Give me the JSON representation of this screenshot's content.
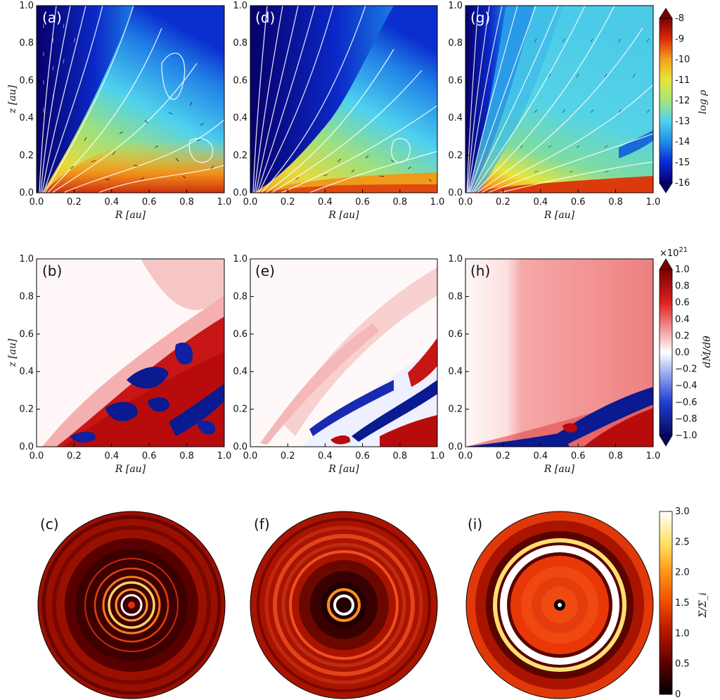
{
  "figure": {
    "panels_row1": [
      "(a)",
      "(d)",
      "(g)"
    ],
    "panels_row2": [
      "(b)",
      "(e)",
      "(h)"
    ],
    "panels_row3": [
      "(c)",
      "(f)",
      "(i)"
    ]
  },
  "chart_data": [
    {
      "type": "heatmap",
      "row": "density",
      "panels": [
        "(a)",
        "(d)",
        "(g)"
      ],
      "xlabel": "R [au]",
      "ylabel": "z [au]",
      "xlim": [
        0.0,
        1.0
      ],
      "ylim": [
        0.0,
        1.0
      ],
      "xticks": [
        "0.0",
        "0.2",
        "0.4",
        "0.6",
        "0.8",
        "1.0"
      ],
      "yticks": [
        "0.0",
        "0.2",
        "0.4",
        "0.6",
        "0.8",
        "1.0"
      ],
      "colorbar": {
        "label": "log ρ",
        "range": [
          -16,
          -8
        ],
        "ticks": [
          "-8",
          "-9",
          "-10",
          "-11",
          "-12",
          "-13",
          "-14",
          "-15",
          "-16"
        ],
        "colors": [
          "#08006e",
          "#0a28d4",
          "#1f8de8",
          "#4fd2ef",
          "#a3e67a",
          "#e6e53a",
          "#f5a21c",
          "#dc2a0c",
          "#7a0000"
        ]
      },
      "overlays": [
        "white field lines",
        "black velocity vectors"
      ]
    },
    {
      "type": "heatmap",
      "row": "mass flux",
      "panels": [
        "(b)",
        "(e)",
        "(h)"
      ],
      "xlabel": "R [au]",
      "ylabel": "z [au]",
      "xlim": [
        0.0,
        1.0
      ],
      "ylim": [
        0.0,
        1.0
      ],
      "xticks": [
        "0.0",
        "0.2",
        "0.4",
        "0.6",
        "0.8",
        "1.0"
      ],
      "yticks": [
        "0.0",
        "0.2",
        "0.4",
        "0.6",
        "0.8",
        "1.0"
      ],
      "colorbar": {
        "label": "dṀ/dθ",
        "multiplier": "×10",
        "multiplier_exp": "21",
        "range": [
          -1.0,
          1.0
        ],
        "ticks": [
          "1.0",
          "0.8",
          "0.6",
          "0.4",
          "0.2",
          "0.0",
          "−0.2",
          "−0.4",
          "−0.6",
          "−0.8",
          "−1.0"
        ],
        "colors": [
          "#08075e",
          "#1f3fd0",
          "#9fb0f0",
          "#ffffff",
          "#f4a8a8",
          "#e02020",
          "#7a0000"
        ]
      }
    },
    {
      "type": "heatmap",
      "row": "surface density (polar)",
      "panels": [
        "(c)",
        "(f)",
        "(i)"
      ],
      "colorbar": {
        "label": "Σ/Σ_i",
        "range": [
          0,
          3.0
        ],
        "ticks": [
          "3.0",
          "2.5",
          "2.0",
          "1.5",
          "1.0",
          "0.5",
          "0"
        ],
        "colors": [
          "#000000",
          "#5c0000",
          "#b81800",
          "#f24a00",
          "#ff9a1a",
          "#ffe060",
          "#ffffff"
        ]
      }
    }
  ]
}
